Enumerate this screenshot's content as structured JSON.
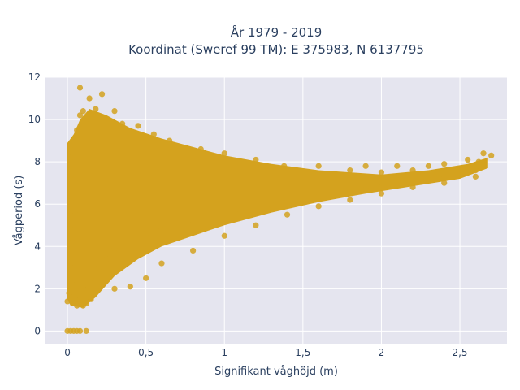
{
  "chart_data": {
    "type": "scatter",
    "title_line1": "År 1979 - 2019",
    "title_line2": "Koordinat (Sweref 99 TM): E 375983, N 6137795",
    "xlabel": "Signifikant våghöjd (m)",
    "ylabel": "Vågperiod (s)",
    "xlim": [
      -0.14,
      2.8
    ],
    "ylim": [
      -0.6,
      12
    ],
    "xticks": [
      0,
      0.5,
      1,
      1.5,
      2,
      2.5
    ],
    "xtick_labels": [
      "0",
      "0,5",
      "1",
      "1,5",
      "2",
      "2,5"
    ],
    "yticks": [
      0,
      2,
      4,
      6,
      8,
      10,
      12
    ],
    "ytick_labels": [
      "0",
      "2",
      "4",
      "6",
      "8",
      "10",
      "12"
    ],
    "grid": true,
    "marker_color": "#D4A21E",
    "plot_background": "#E5E5EF",
    "points": [
      [
        0.0,
        0.0
      ],
      [
        0.02,
        0.0
      ],
      [
        0.04,
        0.0
      ],
      [
        0.06,
        0.0
      ],
      [
        0.08,
        0.0
      ],
      [
        0.12,
        0.0
      ],
      [
        0.0,
        1.4
      ],
      [
        0.01,
        1.8
      ],
      [
        0.02,
        1.6
      ],
      [
        0.03,
        2.2
      ],
      [
        0.05,
        1.5
      ],
      [
        0.06,
        1.2
      ],
      [
        0.08,
        1.3
      ],
      [
        0.1,
        1.2
      ],
      [
        0.12,
        1.3
      ],
      [
        0.15,
        1.5
      ],
      [
        0.02,
        3.0
      ],
      [
        0.03,
        4.2
      ],
      [
        0.02,
        5.0
      ],
      [
        0.05,
        5.5
      ],
      [
        0.03,
        6.3
      ],
      [
        0.05,
        7.2
      ],
      [
        0.02,
        8.2
      ],
      [
        0.04,
        8.8
      ],
      [
        0.06,
        9.5
      ],
      [
        0.08,
        10.2
      ],
      [
        0.1,
        10.4
      ],
      [
        0.12,
        9.8
      ],
      [
        0.14,
        11.0
      ],
      [
        0.08,
        11.5
      ],
      [
        0.22,
        11.2
      ],
      [
        0.18,
        10.5
      ],
      [
        0.3,
        10.4
      ],
      [
        0.35,
        9.8
      ],
      [
        0.45,
        9.7
      ],
      [
        0.55,
        9.3
      ],
      [
        0.65,
        9.0
      ],
      [
        0.85,
        8.6
      ],
      [
        1.0,
        8.4
      ],
      [
        1.2,
        8.1
      ],
      [
        1.38,
        7.8
      ],
      [
        1.6,
        7.8
      ],
      [
        1.8,
        7.6
      ],
      [
        1.9,
        7.8
      ],
      [
        2.0,
        7.5
      ],
      [
        2.1,
        7.8
      ],
      [
        2.2,
        7.6
      ],
      [
        2.3,
        7.8
      ],
      [
        2.4,
        7.9
      ],
      [
        2.55,
        8.1
      ],
      [
        2.62,
        8.0
      ],
      [
        2.65,
        8.4
      ],
      [
        2.7,
        8.3
      ],
      [
        0.1,
        2.0
      ],
      [
        0.15,
        2.5
      ],
      [
        0.2,
        3.0
      ],
      [
        0.25,
        3.4
      ],
      [
        0.3,
        3.9
      ],
      [
        0.4,
        4.2
      ],
      [
        0.5,
        4.6
      ],
      [
        0.6,
        4.8
      ],
      [
        0.7,
        5.0
      ],
      [
        0.8,
        5.2
      ],
      [
        0.9,
        5.4
      ],
      [
        1.0,
        5.6
      ],
      [
        1.1,
        5.7
      ],
      [
        1.2,
        5.85
      ],
      [
        1.3,
        5.95
      ],
      [
        1.4,
        6.1
      ],
      [
        1.5,
        6.2
      ],
      [
        1.6,
        6.35
      ],
      [
        1.7,
        6.45
      ],
      [
        1.8,
        6.6
      ],
      [
        1.9,
        6.7
      ],
      [
        2.0,
        6.8
      ],
      [
        2.1,
        6.9
      ],
      [
        2.2,
        7.0
      ],
      [
        2.3,
        7.15
      ],
      [
        2.4,
        7.25
      ],
      [
        2.5,
        7.4
      ],
      [
        2.6,
        7.6
      ],
      [
        0.3,
        2.0
      ],
      [
        0.4,
        2.1
      ],
      [
        0.5,
        2.5
      ],
      [
        0.6,
        3.2
      ],
      [
        0.8,
        3.8
      ],
      [
        1.0,
        4.5
      ],
      [
        1.2,
        5.0
      ],
      [
        1.4,
        5.5
      ],
      [
        1.6,
        5.9
      ],
      [
        1.8,
        6.2
      ],
      [
        2.0,
        6.5
      ],
      [
        2.2,
        6.8
      ],
      [
        2.4,
        7.0
      ],
      [
        2.6,
        7.3
      ]
    ]
  }
}
